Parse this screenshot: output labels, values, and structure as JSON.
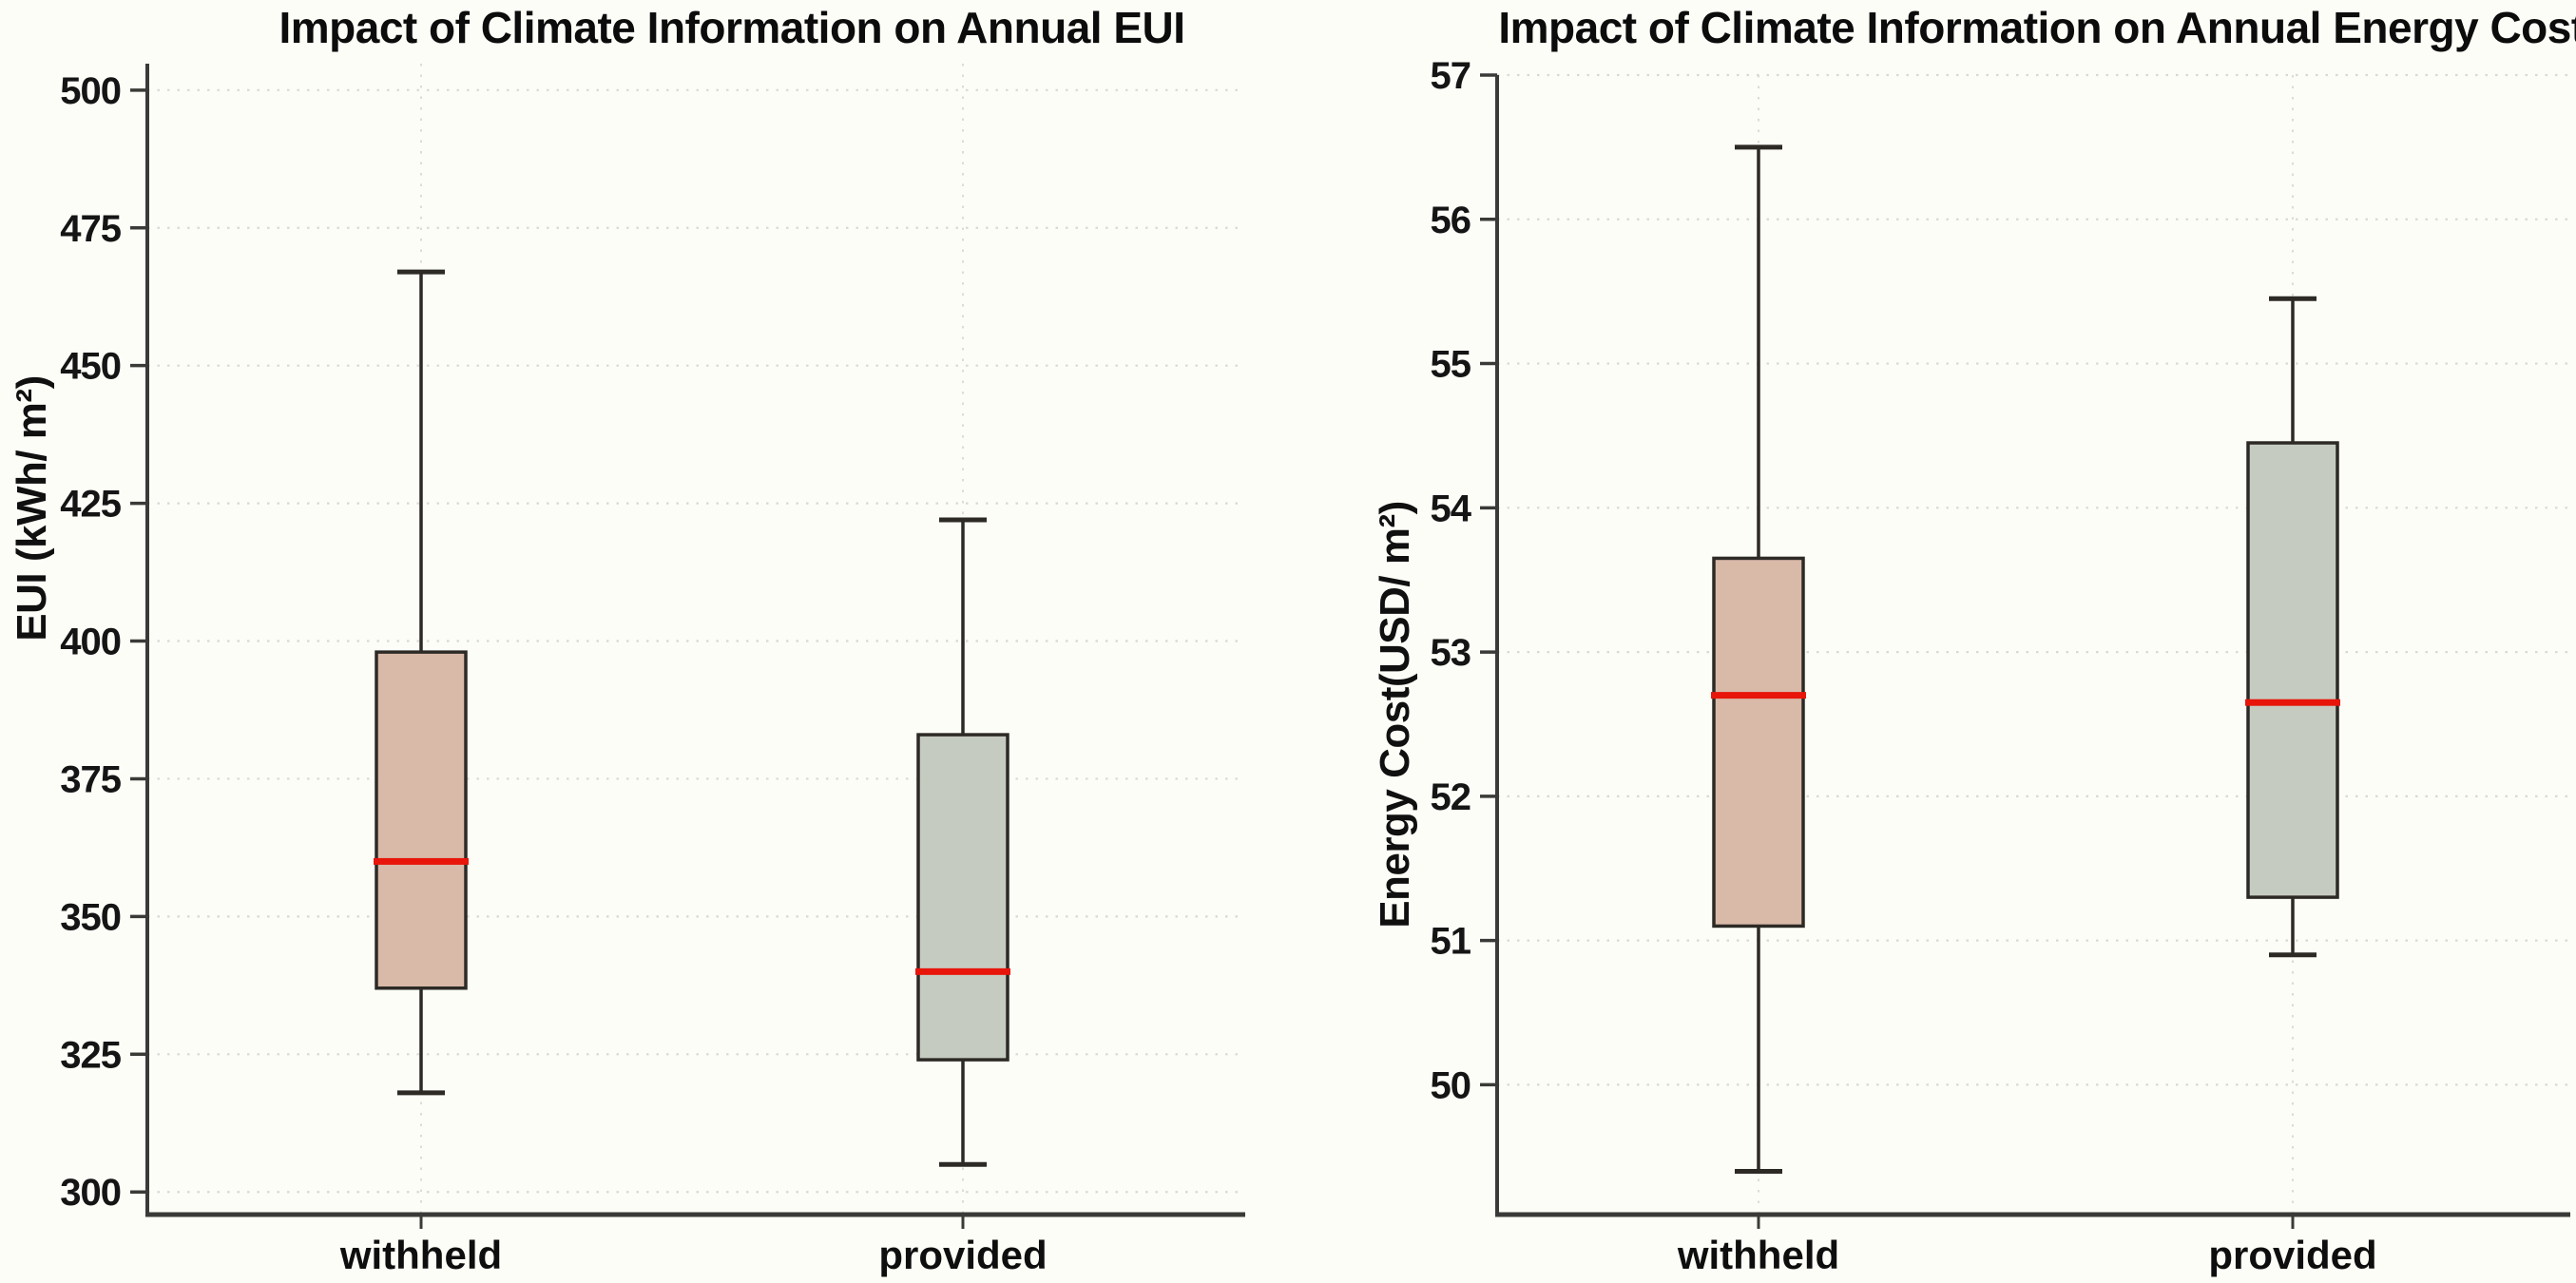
{
  "figure": {
    "background_color": "#fdfdf8",
    "text_color": "#0c0c0c",
    "grid_color": "#d9d9d3",
    "category_guide_color": "#dcdcd6",
    "spine_color": "#3a3a38",
    "box_border_color": "#2d2a26",
    "median_color": "#e8150a",
    "withheld_fill": "#d9b9a8",
    "provided_fill": "#c6cbc1"
  },
  "chart_data": [
    {
      "type": "boxplot",
      "title": "Impact of Climate Information on Annual EUI",
      "ylabel": "EUI (kWh/ m²)",
      "xlabel": "",
      "categories": [
        "withheld",
        "provided"
      ],
      "y_ticks": [
        300,
        325,
        350,
        375,
        400,
        425,
        450,
        475,
        500
      ],
      "ylim": [
        295.9,
        504.8
      ],
      "grid": true,
      "legend": false,
      "series": [
        {
          "name": "withheld",
          "whisker_low": 318,
          "q1": 337,
          "median": 360,
          "q3": 398,
          "whisker_high": 467,
          "fill": "#d9b9a8"
        },
        {
          "name": "provided",
          "whisker_low": 305,
          "q1": 324,
          "median": 340,
          "q3": 383,
          "whisker_high": 422,
          "fill": "#c6cbc1"
        }
      ]
    },
    {
      "type": "boxplot",
      "title": "Impact of Climate Information on Annual Energy Cost",
      "ylabel": "Energy Cost(USD/ m²)",
      "xlabel": "",
      "categories": [
        "withheld",
        "provided"
      ],
      "y_ticks": [
        50,
        51,
        52,
        53,
        54,
        55,
        56,
        57
      ],
      "ylim": [
        49.1,
        57.0
      ],
      "grid": true,
      "legend": false,
      "series": [
        {
          "name": "withheld",
          "whisker_low": 49.4,
          "q1": 51.1,
          "median": 52.7,
          "q3": 53.65,
          "whisker_high": 56.5,
          "fill": "#d9b9a8"
        },
        {
          "name": "provided",
          "whisker_low": 50.9,
          "q1": 51.3,
          "median": 52.65,
          "q3": 54.45,
          "whisker_high": 55.45,
          "fill": "#c6cbc1"
        }
      ]
    }
  ]
}
